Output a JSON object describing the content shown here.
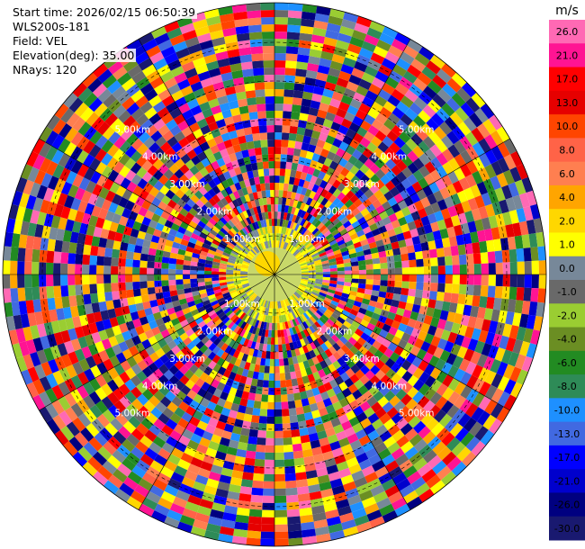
{
  "header": {
    "start_time": "Start time: 2026/02/15 06:50:39",
    "instrument": "WLS200s-181",
    "field": "Field: VEL",
    "elevation": "Elevation(deg): 35.00",
    "nrays": "NRays: 120"
  },
  "chart_data": {
    "type": "heatmap",
    "projection": "polar",
    "field": "VEL",
    "n_rays": 120,
    "range_rings_km": [
      "1.00km",
      "2.00km",
      "3.00km",
      "4.00km",
      "5.00km"
    ],
    "colorbar": {
      "unit": "m/s",
      "labels": [
        "26.0",
        "21.0",
        "17.0",
        "13.0",
        "10.0",
        "8.0",
        "6.0",
        "4.0",
        "2.0",
        "1.0",
        "0.0",
        "-1.0",
        "-2.0",
        "-4.0",
        "-6.0",
        "-8.0",
        "-10.0",
        "-13.0",
        "-17.0",
        "-21.0",
        "-26.0",
        "-30.0"
      ],
      "colors": [
        "#ff69b4",
        "#ff1493",
        "#ff0000",
        "#e60000",
        "#ff4500",
        "#ff6347",
        "#ff7f50",
        "#ffa500",
        "#ffd700",
        "#ffff00",
        "#778899",
        "#696969",
        "#9acd32",
        "#6b8e23",
        "#228b22",
        "#2e8b57",
        "#1e90ff",
        "#4169e1",
        "#0000ff",
        "#0000cd",
        "#000080",
        "#191970"
      ]
    }
  }
}
